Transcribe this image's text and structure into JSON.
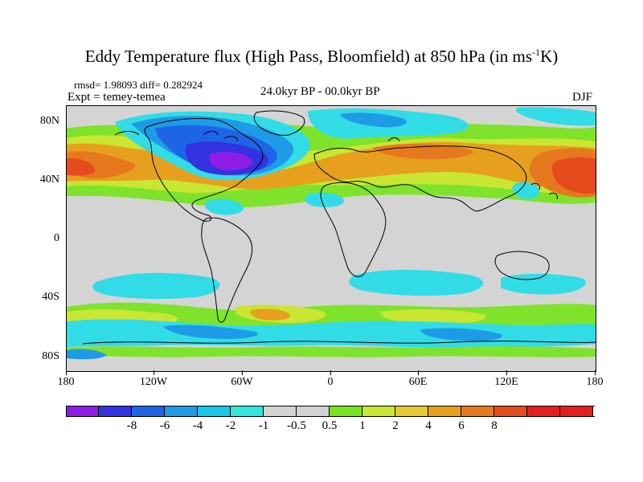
{
  "title": {
    "main": "Eddy Temperature flux (High Pass, Bloomfield) at 850 hPa (in ms",
    "sup": "-1",
    "end": "K)"
  },
  "stats": "rmsd= 1.98093 diff= 0.282924",
  "expt": "Expt = temey-temea",
  "period": "24.0kyr BP - 00.0kyr BP",
  "season": "DJF",
  "lat_labels": [
    "80N",
    "40N",
    "0",
    "40S",
    "80S"
  ],
  "lon_labels": [
    "180",
    "120W",
    "60W",
    "0",
    "60E",
    "120E",
    "180"
  ],
  "colorbar": {
    "colors": [
      "#8e1ee6",
      "#3232e0",
      "#1e64e6",
      "#1e9be6",
      "#19c8e6",
      "#32e6dc",
      "#d2d2d2",
      "#d2d2d2",
      "#78e61e",
      "#c8e632",
      "#e6c832",
      "#e6a01e",
      "#e6781e",
      "#e64b1e",
      "#e61e1e",
      "#e61e1e"
    ],
    "labels": [
      "-8",
      "-6",
      "-4",
      "-2",
      "-1",
      "-0.5",
      "0.5",
      "1",
      "2",
      "4",
      "6",
      "8"
    ]
  },
  "map_colors": {
    "bg": "#d4d4d4",
    "green": "#7ee32a",
    "yellow": "#c8e632",
    "orange": "#e6a01e",
    "dorange": "#e6781e",
    "red": "#e64b1e",
    "cyan": "#32dce6",
    "lblue": "#1e9be6",
    "blue": "#1e64e6",
    "dblue": "#3232e0",
    "purple": "#8e1ee6"
  }
}
